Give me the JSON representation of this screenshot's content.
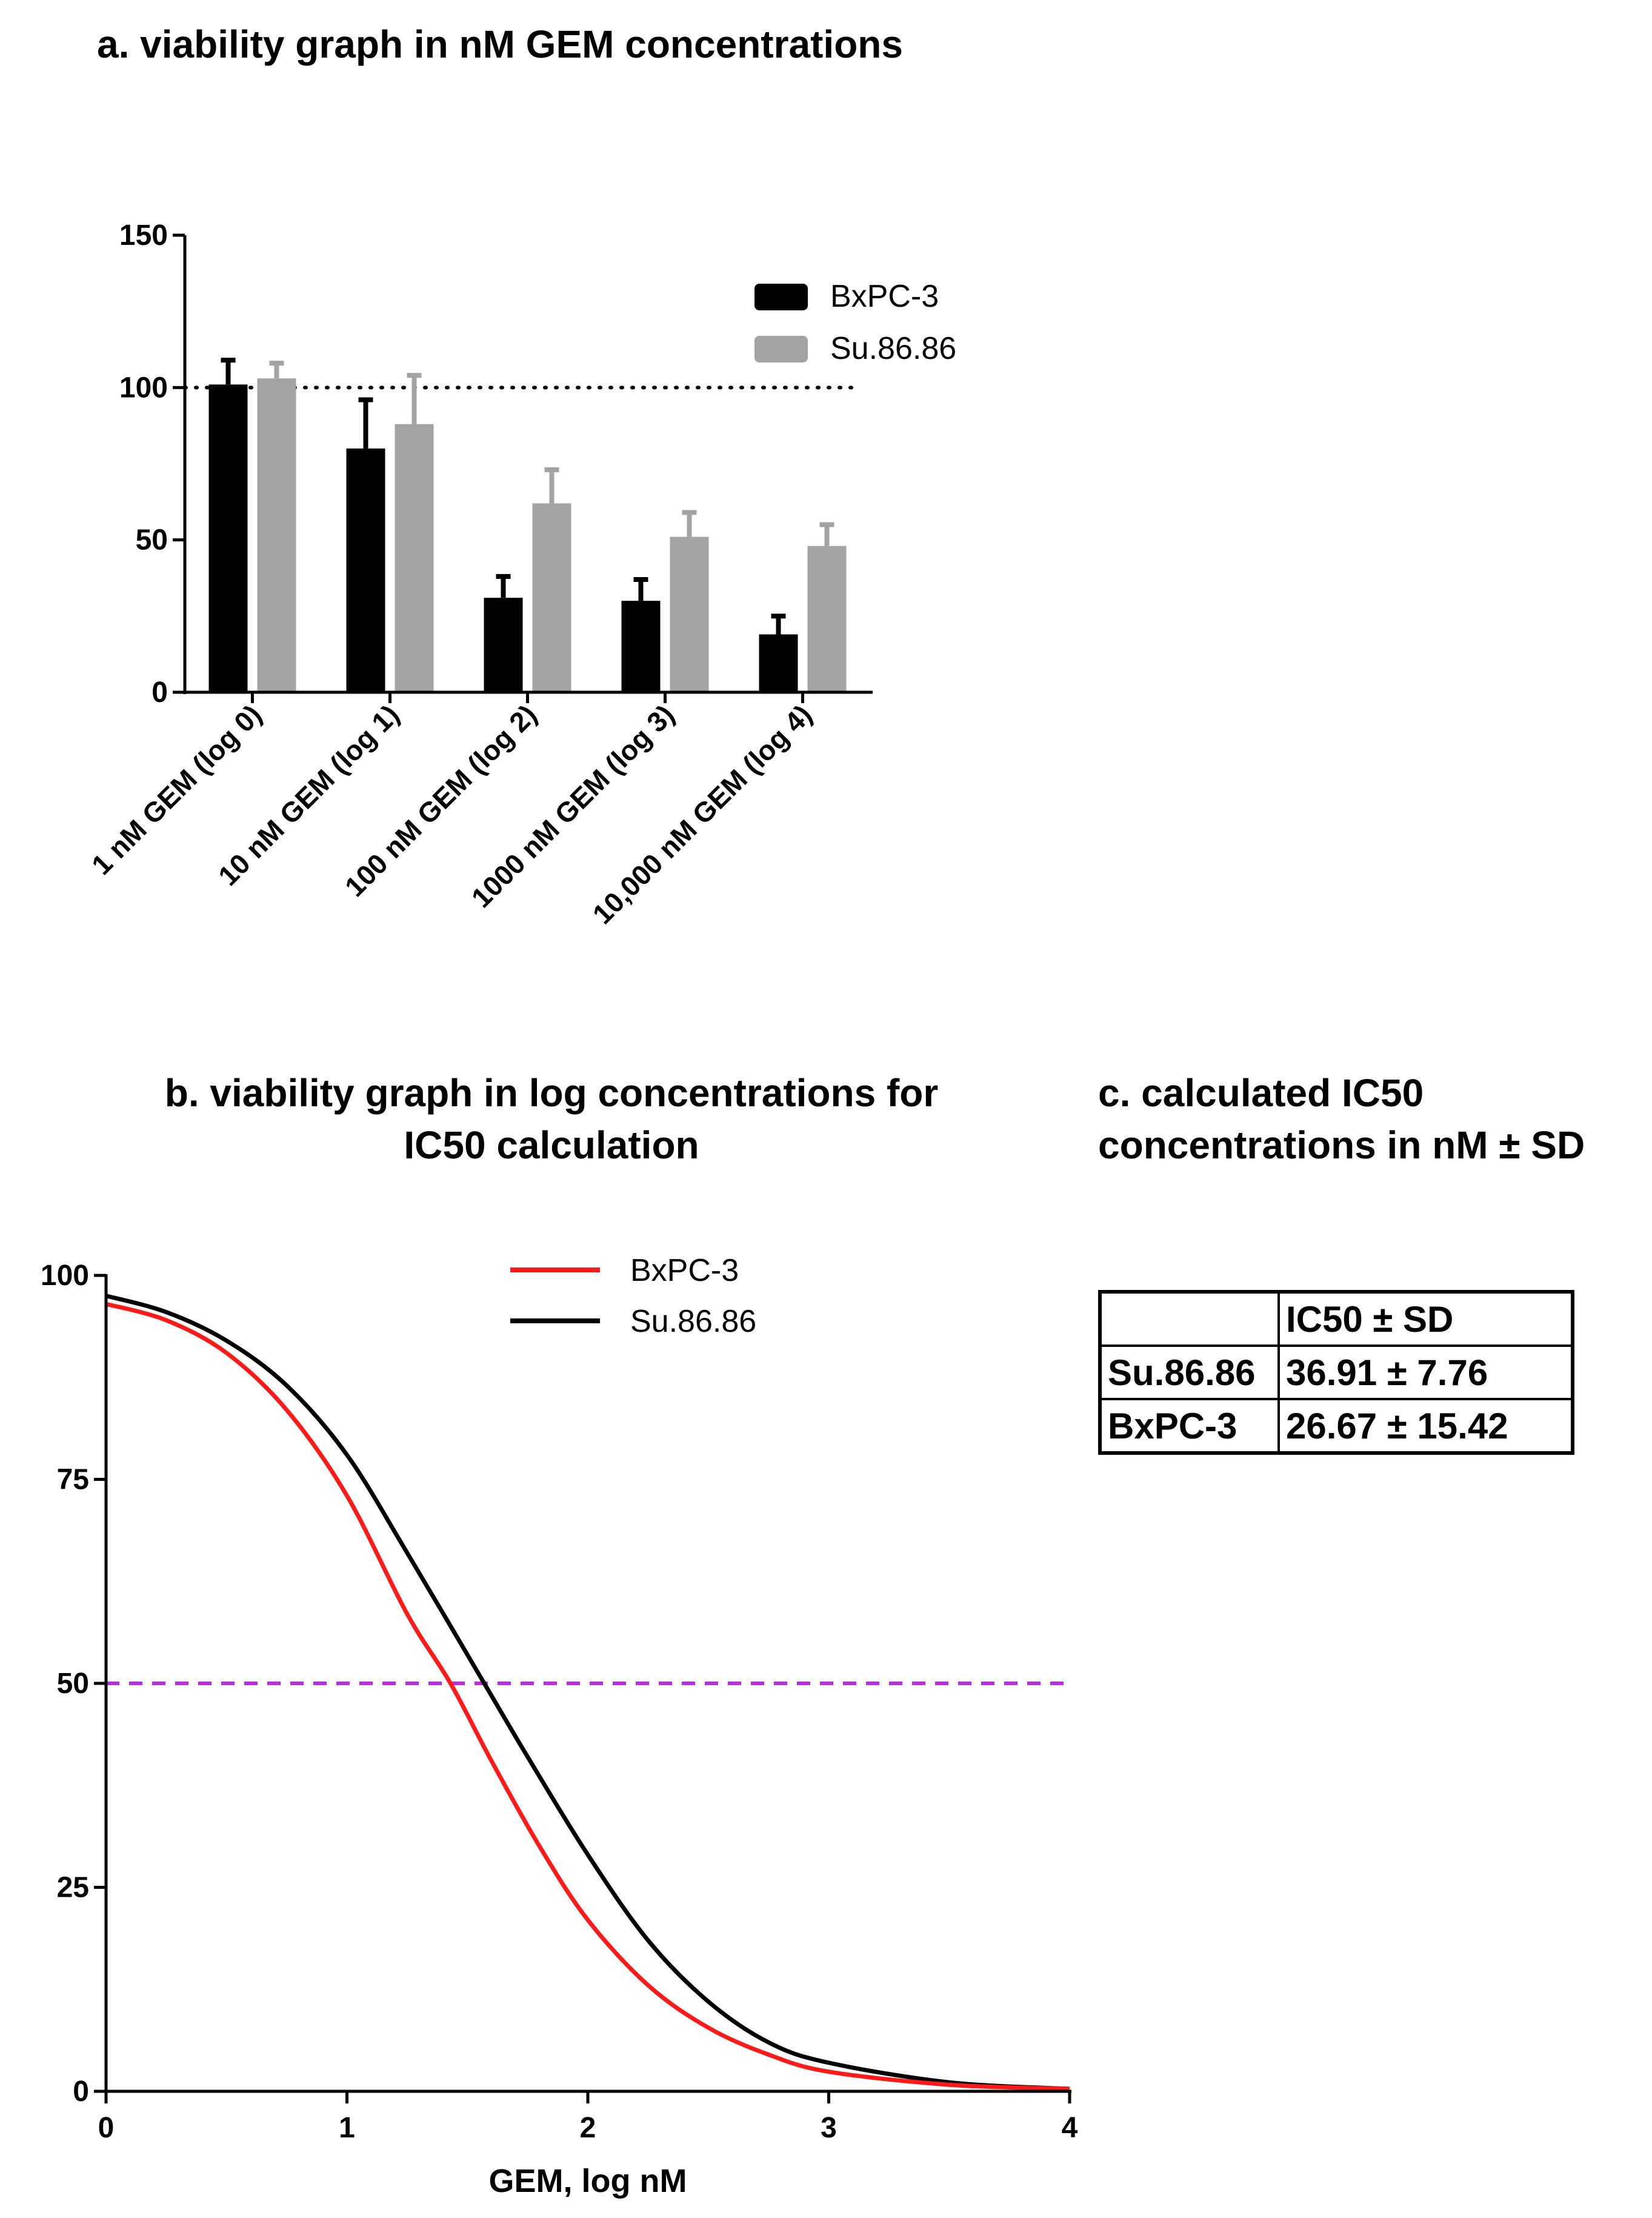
{
  "panel_a": {
    "title": "a. viability graph in nM GEM concentrations"
  },
  "panel_b": {
    "title_line1": "b. viability graph in log concentrations for",
    "title_line2": "IC50 calculation"
  },
  "panel_c": {
    "title_line1": "c. calculated IC50",
    "title_line2": "concentrations in nM ± SD",
    "table": {
      "header": [
        "",
        "IC50 ± SD"
      ],
      "rows": [
        [
          "Su.86.86",
          "36.91 ± 7.76"
        ],
        [
          "BxPC-3",
          "26.67 ± 15.42"
        ]
      ]
    }
  },
  "chart_data": [
    {
      "type": "bar",
      "title": "a. viability graph in nM GEM concentrations",
      "categories": [
        "1 nM GEM (log 0)",
        "10 nM GEM (log 1)",
        "100 nM GEM (log 2)",
        "1000 nM GEM (log 3)",
        "10,000 nM GEM (log 4)"
      ],
      "series": [
        {
          "name": "BxPC-3",
          "color": "#000000",
          "values": [
            101,
            80,
            31,
            30,
            19
          ],
          "error": [
            8,
            16,
            7,
            7,
            6
          ]
        },
        {
          "name": "Su.86.86",
          "color": "#a3a3a6",
          "values": [
            103,
            88,
            62,
            51,
            48
          ],
          "error": [
            5,
            16,
            11,
            8,
            7
          ]
        }
      ],
      "ylim": [
        0,
        150
      ],
      "yticks": [
        0,
        50,
        100,
        150
      ],
      "reference_line": {
        "y": 100,
        "style": "dotted"
      },
      "legend_position": "top-right",
      "xlabel": "",
      "ylabel": ""
    },
    {
      "type": "line",
      "title": "b. viability graph in log concentrations for IC50 calculation",
      "xlabel": "GEM, log nM",
      "ylabel": "",
      "xlim": [
        0,
        4
      ],
      "ylim": [
        0,
        100
      ],
      "xticks": [
        0,
        1,
        2,
        3,
        4
      ],
      "yticks": [
        0,
        25,
        50,
        75,
        100
      ],
      "reference_line": {
        "y": 50,
        "style": "dashed",
        "color": "#b82ee0"
      },
      "legend_position": "top-center",
      "series": [
        {
          "name": "BxPC-3",
          "color": "#ff1a1a",
          "x": [
            0,
            0.25,
            0.5,
            0.75,
            1,
            1.25,
            1.43,
            1.6,
            1.8,
            2,
            2.25,
            2.5,
            2.75,
            3,
            3.5,
            4
          ],
          "y": [
            96.5,
            94.5,
            90.5,
            83.5,
            73,
            58.5,
            50,
            40.5,
            30,
            21,
            13,
            7.8,
            4.5,
            2.4,
            0.8,
            0.3
          ]
        },
        {
          "name": "Su.86.86",
          "color": "#000000",
          "x": [
            0,
            0.25,
            0.5,
            0.75,
            1,
            1.25,
            1.57,
            1.75,
            2,
            2.25,
            2.5,
            2.75,
            3,
            3.5,
            4
          ],
          "y": [
            97.5,
            95.5,
            92,
            86.5,
            78,
            66,
            50,
            41,
            29,
            18.5,
            11,
            6,
            3.5,
            1.1,
            0.3
          ]
        }
      ]
    }
  ]
}
